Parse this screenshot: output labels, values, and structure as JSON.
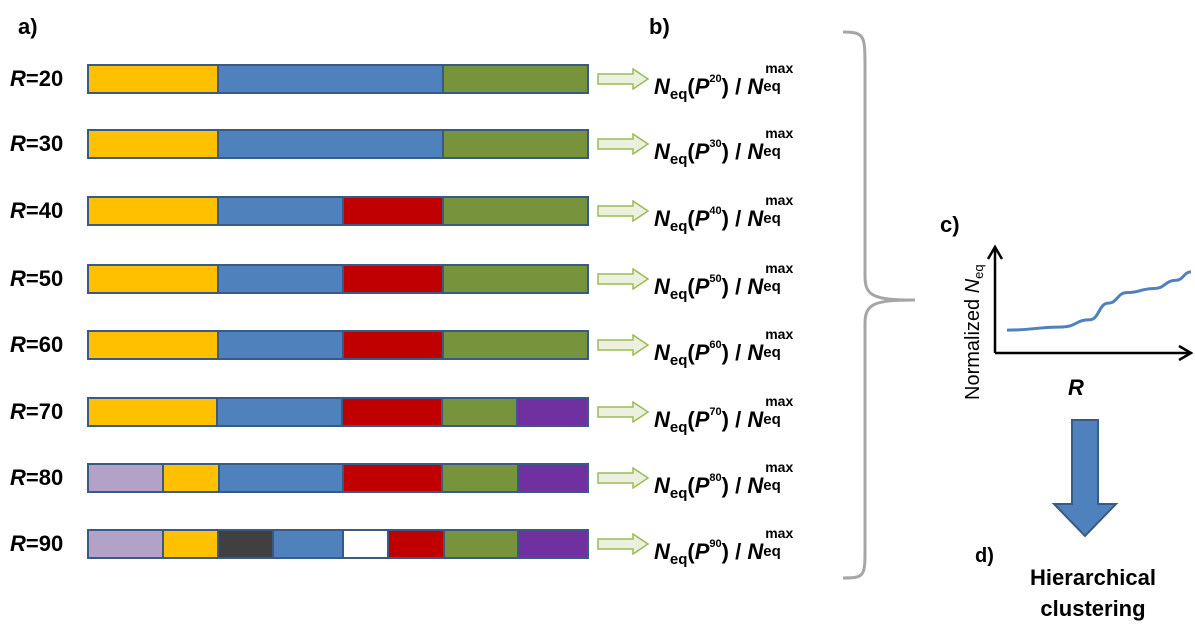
{
  "panels": {
    "a": "a)",
    "b": "b)",
    "c": "c)",
    "d": "d)"
  },
  "colors": {
    "orange": "#ffc000",
    "blue": "#4f81bd",
    "red": "#c00000",
    "green": "#77933c",
    "purple": "#7030a0",
    "lavender": "#b3a2c7",
    "dark": "#404040",
    "white": "#ffffff",
    "outline": "#3a5a86",
    "arrow_fill": "#ebf1de",
    "arrow_stroke": "#9bbb59"
  },
  "rows": [
    {
      "r_var": "R",
      "r_val": "=20",
      "p_sup": "20",
      "segments": [
        [
          "orange",
          26
        ],
        [
          "blue",
          45
        ],
        [
          "green",
          29
        ]
      ]
    },
    {
      "r_var": "R",
      "r_val": "=30",
      "p_sup": "30",
      "segments": [
        [
          "orange",
          26
        ],
        [
          "blue",
          45
        ],
        [
          "green",
          29
        ]
      ]
    },
    {
      "r_var": "R",
      "r_val": "=40",
      "p_sup": "40",
      "segments": [
        [
          "orange",
          26
        ],
        [
          "blue",
          25
        ],
        [
          "red",
          20
        ],
        [
          "green",
          29
        ]
      ]
    },
    {
      "r_var": "R",
      "r_val": "=50",
      "p_sup": "50",
      "segments": [
        [
          "orange",
          26
        ],
        [
          "blue",
          25
        ],
        [
          "red",
          20
        ],
        [
          "green",
          29
        ]
      ]
    },
    {
      "r_var": "R",
      "r_val": "=60",
      "p_sup": "60",
      "segments": [
        [
          "orange",
          26
        ],
        [
          "blue",
          25
        ],
        [
          "red",
          20
        ],
        [
          "green",
          29
        ]
      ]
    },
    {
      "r_var": "R",
      "r_val": "=70",
      "p_sup": "70",
      "segments": [
        [
          "orange",
          26
        ],
        [
          "blue",
          25
        ],
        [
          "red",
          20
        ],
        [
          "green",
          15
        ],
        [
          "purple",
          14
        ]
      ]
    },
    {
      "r_var": "R",
      "r_val": "=80",
      "p_sup": "80",
      "segments": [
        [
          "lavender",
          15
        ],
        [
          "orange",
          11
        ],
        [
          "blue",
          25
        ],
        [
          "red",
          20
        ],
        [
          "green",
          15
        ],
        [
          "purple",
          14
        ]
      ]
    },
    {
      "r_var": "R",
      "r_val": "=90",
      "p_sup": "90",
      "segments": [
        [
          "lavender",
          15
        ],
        [
          "orange",
          11
        ],
        [
          "dark",
          11
        ],
        [
          "blue",
          14
        ],
        [
          "white",
          9
        ],
        [
          "red",
          11
        ],
        [
          "green",
          15
        ],
        [
          "purple",
          14
        ]
      ]
    }
  ],
  "formula": {
    "n": "N",
    "n_sub": "eq",
    "p": "P",
    "max": "max",
    "open": "(",
    "close": ") / "
  },
  "plot": {
    "ylabel_text": "Normalized ",
    "ylabel_var": "N",
    "ylabel_sub": "eq",
    "xlabel": "R",
    "curve": [
      [
        0,
        0.22
      ],
      [
        0.3,
        0.25
      ],
      [
        0.45,
        0.32
      ],
      [
        0.55,
        0.48
      ],
      [
        0.65,
        0.58
      ],
      [
        0.8,
        0.62
      ],
      [
        0.92,
        0.7
      ],
      [
        1.0,
        0.78
      ]
    ]
  },
  "final_step": [
    "Hierarchical",
    "clustering"
  ]
}
